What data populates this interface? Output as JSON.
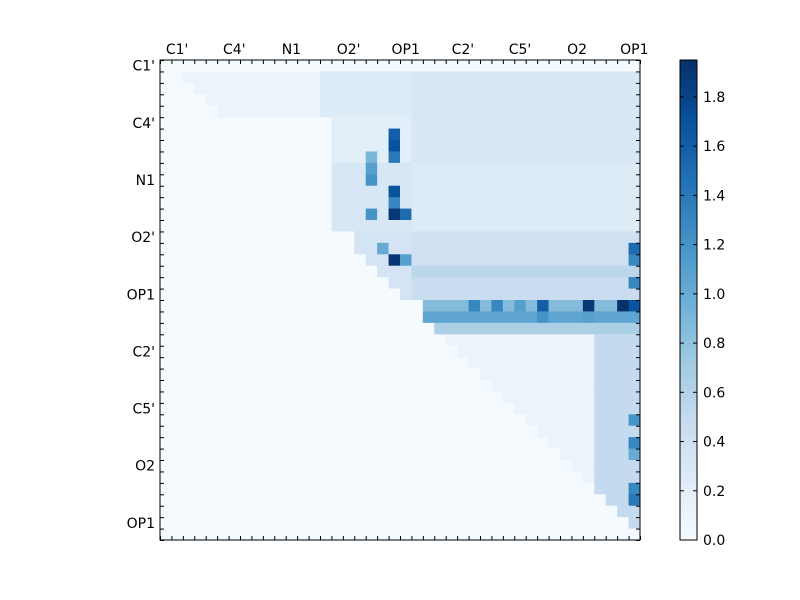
{
  "chart_data": {
    "type": "heatmap",
    "title": "",
    "xlabel": "",
    "ylabel": "",
    "x_tick_labels": [
      "C1'",
      "C4'",
      "N1",
      "O2'",
      "OP1",
      "C2'",
      "C5'",
      "O2",
      "OP1"
    ],
    "y_tick_labels": [
      "C1'",
      "C4'",
      "N1",
      "O2'",
      "OP1",
      "C2'",
      "C5'",
      "O2",
      "OP1"
    ],
    "n_cells": 42,
    "colorbar": {
      "min": 0.0,
      "max": 1.95,
      "ticks": [
        "0.0",
        "0.2",
        "0.4",
        "0.6",
        "0.8",
        "1.0",
        "1.2",
        "1.4",
        "1.6",
        "1.8"
      ],
      "colormap": "Blues",
      "low_color": "#f7fbff",
      "high_color": "#08306b"
    },
    "background_value": 0.02,
    "regions": [
      {
        "r0": 1,
        "r1": 5,
        "c0": 2,
        "c1": 14,
        "value": 0.12
      },
      {
        "r0": 1,
        "r1": 5,
        "c0": 14,
        "c1": 22,
        "value": 0.25
      },
      {
        "r0": 1,
        "r1": 9,
        "c0": 22,
        "c1": 42,
        "value": 0.3
      },
      {
        "r0": 5,
        "r1": 9,
        "c0": 15,
        "c1": 22,
        "value": 0.2
      },
      {
        "r0": 9,
        "r1": 15,
        "c0": 15,
        "c1": 22,
        "value": 0.3
      },
      {
        "r0": 9,
        "r1": 15,
        "c0": 22,
        "c1": 42,
        "value": 0.25
      },
      {
        "r0": 15,
        "r1": 21,
        "c0": 17,
        "c1": 22,
        "value": 0.35
      },
      {
        "r0": 15,
        "r1": 21,
        "c0": 22,
        "c1": 42,
        "value": 0.4
      },
      {
        "r0": 18,
        "r1": 19,
        "c0": 22,
        "c1": 42,
        "value": 0.55
      },
      {
        "r0": 19,
        "r1": 21,
        "c0": 22,
        "c1": 42,
        "value": 0.45
      },
      {
        "r0": 21,
        "r1": 23,
        "c0": 23,
        "c1": 42,
        "value": 0.85
      },
      {
        "r0": 22,
        "r1": 23,
        "c0": 23,
        "c1": 42,
        "value": 1.05
      },
      {
        "r0": 23,
        "r1": 24,
        "c0": 23,
        "c1": 42,
        "value": 0.65
      },
      {
        "r0": 24,
        "r1": 42,
        "c0": 24,
        "c1": 42,
        "value": 0.12
      },
      {
        "r0": 24,
        "r1": 42,
        "c0": 38,
        "c1": 42,
        "value": 0.5
      }
    ],
    "cells": [
      {
        "r": 6,
        "c": 20,
        "value": 1.6
      },
      {
        "r": 7,
        "c": 20,
        "value": 1.7
      },
      {
        "r": 8,
        "c": 20,
        "value": 1.4
      },
      {
        "r": 8,
        "c": 18,
        "value": 0.9
      },
      {
        "r": 10,
        "c": 18,
        "value": 1.2
      },
      {
        "r": 11,
        "c": 20,
        "value": 1.7
      },
      {
        "r": 12,
        "c": 20,
        "value": 1.3
      },
      {
        "r": 13,
        "c": 20,
        "value": 1.9
      },
      {
        "r": 13,
        "c": 21,
        "value": 1.5
      },
      {
        "r": 13,
        "c": 18,
        "value": 1.2
      },
      {
        "r": 9,
        "c": 18,
        "value": 1.1
      },
      {
        "r": 16,
        "c": 19,
        "value": 1.0
      },
      {
        "r": 17,
        "c": 20,
        "value": 1.9
      },
      {
        "r": 17,
        "c": 21,
        "value": 1.1
      },
      {
        "r": 21,
        "c": 27,
        "value": 1.3
      },
      {
        "r": 21,
        "c": 29,
        "value": 1.3
      },
      {
        "r": 21,
        "c": 31,
        "value": 1.1
      },
      {
        "r": 21,
        "c": 33,
        "value": 1.6
      },
      {
        "r": 21,
        "c": 37,
        "value": 1.9
      },
      {
        "r": 21,
        "c": 40,
        "value": 1.95
      },
      {
        "r": 21,
        "c": 41,
        "value": 1.7
      },
      {
        "r": 22,
        "c": 33,
        "value": 1.2
      },
      {
        "r": 22,
        "c": 37,
        "value": 1.1
      },
      {
        "r": 16,
        "c": 41,
        "value": 1.5
      },
      {
        "r": 17,
        "c": 41,
        "value": 1.3
      },
      {
        "r": 19,
        "c": 41,
        "value": 1.3
      },
      {
        "r": 31,
        "c": 41,
        "value": 1.2
      },
      {
        "r": 33,
        "c": 41,
        "value": 1.3
      },
      {
        "r": 34,
        "c": 41,
        "value": 1.0
      },
      {
        "r": 37,
        "c": 41,
        "value": 1.3
      },
      {
        "r": 38,
        "c": 41,
        "value": 1.4
      }
    ]
  }
}
